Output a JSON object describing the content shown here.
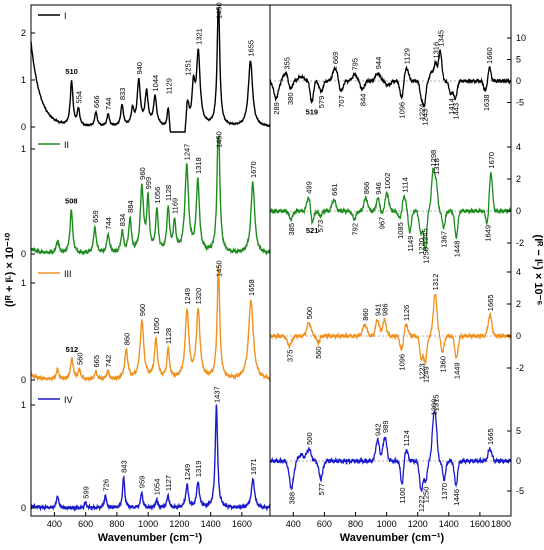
{
  "chart_data": [
    {
      "type": "line",
      "title": "",
      "xlabel": "Wavenumber (cm⁻¹)",
      "ylabel": "(Iᴿ + Iᴸ) × 10⁻¹⁰",
      "xlim": [
        250,
        1780
      ],
      "x_ticks": [
        "400",
        "600",
        "800",
        "1000",
        "1200",
        "1400",
        "1600"
      ],
      "series": [
        {
          "name": "I",
          "color": "#000000",
          "y_ticks": [
            "0",
            "1",
            "2"
          ],
          "peaks": [
            {
              "x": 510,
              "label": "510",
              "bold": true
            },
            {
              "x": 554,
              "label": "554"
            },
            {
              "x": 666,
              "label": "666"
            },
            {
              "x": 744,
              "label": "744"
            },
            {
              "x": 833,
              "label": "833"
            },
            {
              "x": 940,
              "label": "940"
            },
            {
              "x": 1044,
              "label": "1044"
            },
            {
              "x": 1129,
              "label": "1129"
            },
            {
              "x": 1251,
              "label": "1251"
            },
            {
              "x": 1321,
              "label": "1321"
            },
            {
              "x": 1450,
              "label": "1450"
            },
            {
              "x": 1655,
              "label": "1655"
            }
          ]
        },
        {
          "name": "II",
          "color": "#1e8c1e",
          "y_ticks": [
            "0",
            "1"
          ],
          "peaks": [
            {
              "x": 508,
              "label": "508",
              "bold": true
            },
            {
              "x": 659,
              "label": "659"
            },
            {
              "x": 744,
              "label": "744"
            },
            {
              "x": 834,
              "label": "834"
            },
            {
              "x": 884,
              "label": "884"
            },
            {
              "x": 960,
              "label": "960"
            },
            {
              "x": 999,
              "label": "999"
            },
            {
              "x": 1056,
              "label": "1056"
            },
            {
              "x": 1128,
              "label": "1128"
            },
            {
              "x": 1169,
              "label": "1169"
            },
            {
              "x": 1247,
              "label": "1247"
            },
            {
              "x": 1318,
              "label": "1318"
            },
            {
              "x": 1450,
              "label": "1450"
            },
            {
              "x": 1670,
              "label": "1670"
            }
          ]
        },
        {
          "name": "III",
          "color": "#f0901e",
          "y_ticks": [
            "0",
            "1"
          ],
          "peaks": [
            {
              "x": 512,
              "label": "512",
              "bold": true
            },
            {
              "x": 560,
              "label": "560"
            },
            {
              "x": 665,
              "label": "665"
            },
            {
              "x": 742,
              "label": "742"
            },
            {
              "x": 860,
              "label": "860"
            },
            {
              "x": 960,
              "label": "960"
            },
            {
              "x": 1050,
              "label": "1050"
            },
            {
              "x": 1128,
              "label": "1128"
            },
            {
              "x": 1249,
              "label": "1249"
            },
            {
              "x": 1320,
              "label": "1320"
            },
            {
              "x": 1450,
              "label": "1450"
            },
            {
              "x": 1658,
              "label": "1658"
            }
          ]
        },
        {
          "name": "IV",
          "color": "#1a1acc",
          "y_ticks": [
            "0",
            "1"
          ],
          "peaks": [
            {
              "x": 599,
              "label": "599"
            },
            {
              "x": 726,
              "label": "726"
            },
            {
              "x": 843,
              "label": "843"
            },
            {
              "x": 959,
              "label": "959"
            },
            {
              "x": 1054,
              "label": "1054"
            },
            {
              "x": 1127,
              "label": "1127"
            },
            {
              "x": 1249,
              "label": "1249"
            },
            {
              "x": 1319,
              "label": "1319"
            },
            {
              "x": 1437,
              "label": "1437"
            },
            {
              "x": 1671,
              "label": "1671"
            }
          ]
        }
      ]
    },
    {
      "type": "line",
      "title": "",
      "xlabel": "Wavenumber (cm⁻¹)",
      "ylabel": "(Iᴿ − Iᴸ) × 10⁻⁶",
      "xlim": [
        250,
        1800
      ],
      "x_ticks": [
        "400",
        "600",
        "800",
        "1000",
        "1200",
        "1400",
        "1600",
        "1800"
      ],
      "series": [
        {
          "name": "I",
          "color": "#000000",
          "y_ticks": [
            "10",
            "5",
            "0",
            "-5"
          ],
          "peaks": [
            {
              "x": 289,
              "label": "289",
              "sign": -1
            },
            {
              "x": 355,
              "label": "355",
              "sign": 1
            },
            {
              "x": 380,
              "label": "380",
              "sign": -1
            },
            {
              "x": 519,
              "label": "519",
              "sign": -1,
              "bold": true
            },
            {
              "x": 579,
              "label": "579",
              "sign": -1
            },
            {
              "x": 669,
              "label": "669",
              "sign": 1
            },
            {
              "x": 707,
              "label": "707",
              "sign": -1
            },
            {
              "x": 795,
              "label": "795",
              "sign": 1
            },
            {
              "x": 844,
              "label": "844",
              "sign": -1
            },
            {
              "x": 944,
              "label": "944",
              "sign": 1
            },
            {
              "x": 1096,
              "label": "1096",
              "sign": -1
            },
            {
              "x": 1129,
              "label": "1129",
              "sign": 1
            },
            {
              "x": 1224,
              "label": "1224",
              "sign": -1
            },
            {
              "x": 1243,
              "label": "1243",
              "sign": -1
            },
            {
              "x": 1316,
              "label": "1316",
              "sign": 1
            },
            {
              "x": 1345,
              "label": "1345",
              "sign": 1
            },
            {
              "x": 1414,
              "label": "1414",
              "sign": -1
            },
            {
              "x": 1443,
              "label": "1443",
              "sign": -1
            },
            {
              "x": 1638,
              "label": "1638",
              "sign": -1
            },
            {
              "x": 1660,
              "label": "1660",
              "sign": 1
            }
          ]
        },
        {
          "name": "II",
          "color": "#1e8c1e",
          "y_ticks": [
            "4",
            "2",
            "0",
            "-2"
          ],
          "peaks": [
            {
              "x": 385,
              "label": "385",
              "sign": -1
            },
            {
              "x": 499,
              "label": "499",
              "sign": 1
            },
            {
              "x": 521,
              "label": "521",
              "sign": -1,
              "bold": true
            },
            {
              "x": 573,
              "label": "573",
              "sign": -1
            },
            {
              "x": 661,
              "label": "661",
              "sign": 1
            },
            {
              "x": 792,
              "label": "792",
              "sign": -1
            },
            {
              "x": 866,
              "label": "866",
              "sign": 1
            },
            {
              "x": 946,
              "label": "946",
              "sign": 1
            },
            {
              "x": 967,
              "label": "967",
              "sign": -1
            },
            {
              "x": 1002,
              "label": "1002",
              "sign": 1
            },
            {
              "x": 1085,
              "label": "1085",
              "sign": -1
            },
            {
              "x": 1114,
              "label": "1114",
              "sign": 1
            },
            {
              "x": 1149,
              "label": "1149",
              "sign": -1
            },
            {
              "x": 1220,
              "label": "1220",
              "sign": -1
            },
            {
              "x": 1245,
              "label": "1245",
              "sign": 1
            },
            {
              "x": 1250,
              "label": "1250",
              "sign": -1
            },
            {
              "x": 1298,
              "label": "1298",
              "sign": 1
            },
            {
              "x": 1318,
              "label": "1318",
              "sign": 1
            },
            {
              "x": 1367,
              "label": "1367",
              "sign": -1
            },
            {
              "x": 1448,
              "label": "1448",
              "sign": -1
            },
            {
              "x": 1649,
              "label": "1649",
              "sign": -1
            },
            {
              "x": 1670,
              "label": "1670",
              "sign": 1
            }
          ]
        },
        {
          "name": "III",
          "color": "#f0901e",
          "y_ticks": [
            "4",
            "2",
            "0",
            "-2"
          ],
          "peaks": [
            {
              "x": 375,
              "label": "375",
              "sign": -1
            },
            {
              "x": 500,
              "label": "500",
              "sign": 1
            },
            {
              "x": 560,
              "label": "560",
              "sign": -1
            },
            {
              "x": 860,
              "label": "860",
              "sign": 1
            },
            {
              "x": 941,
              "label": "941",
              "sign": 1
            },
            {
              "x": 986,
              "label": "986",
              "sign": 1
            },
            {
              "x": 1096,
              "label": "1096",
              "sign": -1
            },
            {
              "x": 1126,
              "label": "1126",
              "sign": 1
            },
            {
              "x": 1223,
              "label": "1223",
              "sign": -1
            },
            {
              "x": 1249,
              "label": "1249",
              "sign": -1
            },
            {
              "x": 1312,
              "label": "1312",
              "sign": 1
            },
            {
              "x": 1360,
              "label": "1360",
              "sign": -1
            },
            {
              "x": 1449,
              "label": "1449",
              "sign": -1
            },
            {
              "x": 1665,
              "label": "1665",
              "sign": 1
            }
          ]
        },
        {
          "name": "IV",
          "color": "#1a1acc",
          "y_ticks": [
            "5",
            "0",
            "-5"
          ],
          "peaks": [
            {
              "x": 388,
              "label": "388",
              "sign": -1
            },
            {
              "x": 500,
              "label": "500",
              "sign": 1
            },
            {
              "x": 577,
              "label": "577",
              "sign": -1
            },
            {
              "x": 942,
              "label": "942",
              "sign": 1
            },
            {
              "x": 989,
              "label": "989",
              "sign": 1
            },
            {
              "x": 1100,
              "label": "1100",
              "sign": -1
            },
            {
              "x": 1124,
              "label": "1124",
              "sign": 1
            },
            {
              "x": 1222,
              "label": "1222",
              "sign": -1
            },
            {
              "x": 1250,
              "label": "1250",
              "sign": -1
            },
            {
              "x": 1300,
              "label": "1300",
              "sign": 1
            },
            {
              "x": 1315,
              "label": "1315",
              "sign": 1
            },
            {
              "x": 1370,
              "label": "1370",
              "sign": -1
            },
            {
              "x": 1446,
              "label": "1446",
              "sign": -1
            },
            {
              "x": 1665,
              "label": "1665",
              "sign": 1
            }
          ]
        }
      ]
    }
  ]
}
